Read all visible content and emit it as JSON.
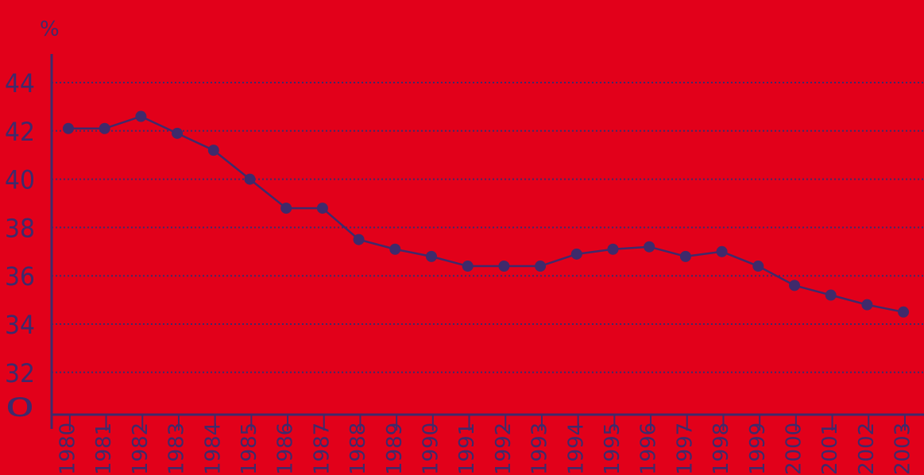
{
  "colors": {
    "background": "#e2001a",
    "ink": "#3f2a6b"
  },
  "chart_data": {
    "type": "line",
    "unit_label": "%",
    "title": "",
    "xlabel": "",
    "ylabel": "",
    "y_ticks": [
      "0",
      "32",
      "34",
      "36",
      "38",
      "40",
      "42",
      "44"
    ],
    "axis_break": "broken y-axis between 0 and 32",
    "ylim": [
      32,
      44
    ],
    "grid": true,
    "grid_style": "dotted horizontal",
    "x": [
      "1980",
      "1981",
      "1982",
      "1983",
      "1984",
      "1985",
      "1986",
      "1987",
      "1988",
      "1989",
      "1990",
      "1991",
      "1992",
      "1993",
      "1994",
      "1995",
      "1996",
      "1997",
      "1998",
      "1999",
      "2000",
      "2001",
      "2002",
      "2003"
    ],
    "values": [
      42.1,
      42.1,
      42.6,
      41.9,
      41.2,
      40.0,
      38.8,
      38.8,
      37.5,
      37.1,
      36.8,
      36.4,
      36.4,
      36.4,
      36.9,
      37.1,
      37.2,
      36.8,
      37.0,
      36.4,
      35.6,
      35.2,
      34.8,
      34.5
    ]
  }
}
